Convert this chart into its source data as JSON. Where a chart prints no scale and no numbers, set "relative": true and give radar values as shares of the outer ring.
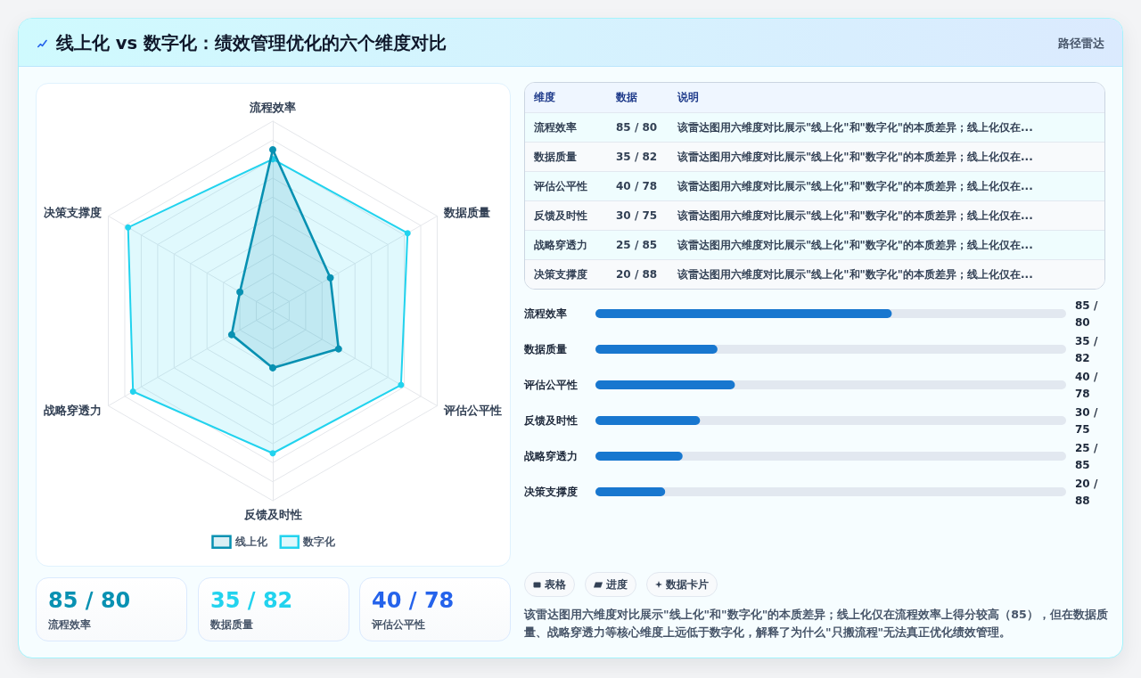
{
  "chart_data": [
    {
      "type": "radar",
      "title": "线上化 vs 数字化：绩效管理优化的六个维度对比",
      "annotations": [
        "该雷达图用六维度对比展示\"线上化\"和\"数字化\"的本质差异；线上化仅在流程效率上得分较高（85），但在数据质量、战略穿透力等核心维度上远低于数字化，解释了为什么\"只搬流程\"无法真正优化绩效管理。"
      ],
      "categories": [
        "流程效率",
        "数据质量",
        "评估公平性",
        "反馈及时性",
        "战略穿透力",
        "决策支撑度"
      ],
      "series": [
        {
          "name": "线上化",
          "color": "#0891b2",
          "values": [
            0.85,
            0.35,
            0.4,
            0.3,
            0.25,
            0.2
          ]
        },
        {
          "name": "数字化",
          "color": "#22d3ee",
          "values": [
            0.8,
            0.82,
            0.78,
            0.75,
            0.85,
            0.88
          ]
        }
      ],
      "relative": true,
      "grid": true,
      "legend": "bottom",
      "marker": "circle"
    },
    {
      "type": "other",
      "annotations": [
        "路径雷达"
      ],
      "categories": [
        "维度",
        "数据",
        "说明"
      ],
      "cell_labels": [
        [
          "流程效率",
          "85 / 80",
          "该雷达图用六维度对比展示\"线上化\"和\"数字化\"的本质差异；线上化仅在..."
        ],
        [
          "数据质量",
          "35 / 82",
          "该雷达图用六维度对比展示\"线上化\"和\"数字化\"的本质差异；线上化仅在..."
        ],
        [
          "评估公平性",
          "40 / 78",
          "该雷达图用六维度对比展示\"线上化\"和\"数字化\"的本质差异；线上化仅在..."
        ],
        [
          "反馈及时性",
          "30 / 75",
          "该雷达图用六维度对比展示\"线上化\"和\"数字化\"的本质差异；线上化仅在..."
        ],
        [
          "战略穿透力",
          "25 / 85",
          "该雷达图用六维度对比展示\"线上化\"和\"数字化\"的本质差异；线上化仅在..."
        ],
        [
          "决策支撑度",
          "20 / 88",
          "该雷达图用六维度对比展示\"线上化\"和\"数字化\"的本质差异；线上化仅在..."
        ]
      ]
    },
    {
      "type": "bar",
      "orientation": "horizontal",
      "categories": [
        "流程效率",
        "数据质量",
        "评估公平性",
        "反馈及时性",
        "战略穿透力",
        "决策支撑度"
      ],
      "values": [
        85,
        35,
        40,
        30,
        25,
        20
      ],
      "value_labels": [
        "85 / 80",
        "35 / 82",
        "40 / 78",
        "30 / 75",
        "25 / 85",
        "20 / 88"
      ],
      "color": "#1877cf",
      "xlim": [
        0,
        135
      ],
      "tick_labels": "y"
    },
    {
      "type": "other",
      "categories": [
        "流程效率",
        "数据质量",
        "评估公平性"
      ],
      "value_labels": [
        "85 / 80",
        "35 / 82",
        "40 / 78"
      ]
    },
    {
      "type": "other",
      "categories": [
        "表格",
        "进度",
        "数据卡片"
      ]
    }
  ]
}
